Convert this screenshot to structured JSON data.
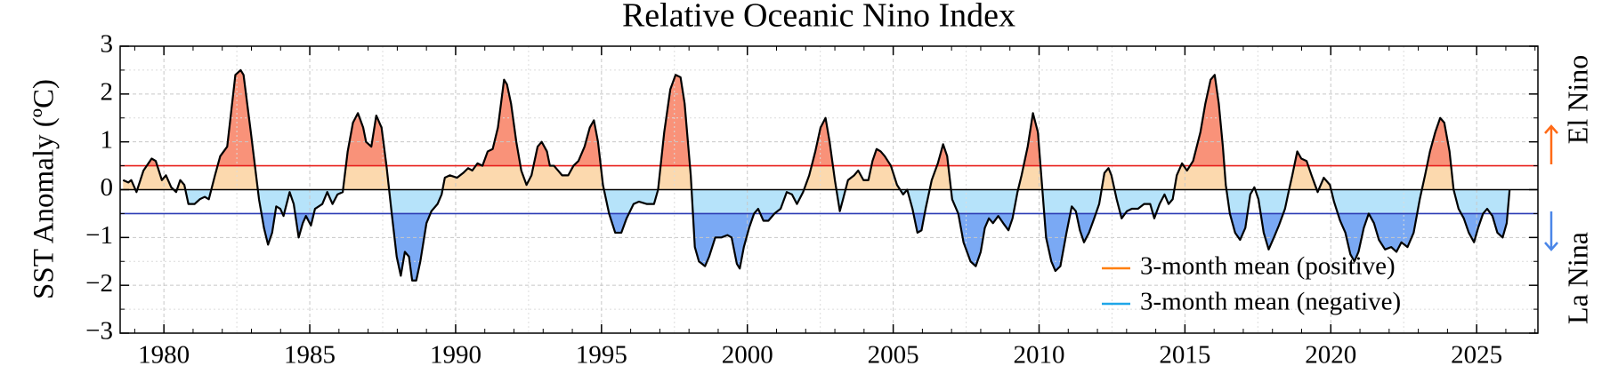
{
  "chart_data": {
    "type": "enso_area",
    "title": "Relative Oceanic Nino Index",
    "y_label": "SST Anomaly (ºC)",
    "xlim": [
      1978.5,
      2027.1
    ],
    "xticks": [
      1980,
      1985,
      1990,
      1995,
      2000,
      2005,
      2010,
      2015,
      2020,
      2025
    ],
    "ylim": [
      -3,
      3
    ],
    "yticks": [
      {
        "value": -3,
        "label": "−3"
      },
      {
        "value": -2,
        "label": "−2"
      },
      {
        "value": -1,
        "label": "−1"
      },
      0,
      1,
      2,
      3
    ],
    "grid": true,
    "line_color": "#000000",
    "x": [
      1978.6,
      1978.78,
      1978.88,
      1979.06,
      1979.3,
      1979.58,
      1979.72,
      1979.93,
      1980.07,
      1980.25,
      1980.42,
      1980.56,
      1980.7,
      1980.84,
      1981.05,
      1981.23,
      1981.4,
      1981.54,
      1981.75,
      1981.93,
      1982.17,
      1982.45,
      1982.63,
      1982.73,
      1982.98,
      1983.26,
      1983.43,
      1983.57,
      1983.71,
      1983.85,
      1983.99,
      1984.1,
      1984.31,
      1984.45,
      1984.62,
      1984.76,
      1984.87,
      1985.04,
      1985.18,
      1985.43,
      1985.6,
      1985.78,
      1985.95,
      1986.13,
      1986.3,
      1986.48,
      1986.65,
      1986.83,
      1986.93,
      1987.11,
      1987.28,
      1987.46,
      1987.63,
      1987.81,
      1987.98,
      1988.12,
      1988.26,
      1988.4,
      1988.51,
      1988.65,
      1988.79,
      1989.0,
      1989.17,
      1989.38,
      1989.52,
      1989.63,
      1989.8,
      1990.05,
      1990.26,
      1990.43,
      1990.57,
      1990.75,
      1990.92,
      1991.1,
      1991.27,
      1991.45,
      1991.66,
      1991.76,
      1991.9,
      1992.08,
      1992.25,
      1992.43,
      1992.6,
      1992.81,
      1992.95,
      1993.13,
      1993.23,
      1993.37,
      1993.51,
      1993.65,
      1993.86,
      1994.04,
      1994.21,
      1994.42,
      1994.6,
      1994.74,
      1994.88,
      1995.05,
      1995.26,
      1995.47,
      1995.68,
      1995.86,
      1996.1,
      1996.28,
      1996.56,
      1996.8,
      1996.94,
      1997.15,
      1997.36,
      1997.54,
      1997.71,
      1997.85,
      1998.06,
      1998.2,
      1998.34,
      1998.55,
      1998.69,
      1998.9,
      1999.11,
      1999.32,
      1999.46,
      1999.64,
      1999.74,
      1999.88,
      2000.06,
      2000.23,
      2000.37,
      2000.55,
      2000.72,
      2000.93,
      2001.14,
      2001.35,
      2001.53,
      2001.7,
      2001.91,
      2002.12,
      2002.33,
      2002.51,
      2002.68,
      2002.82,
      2003.0,
      2003.17,
      2003.28,
      2003.45,
      2003.66,
      2003.8,
      2003.98,
      2004.15,
      2004.29,
      2004.43,
      2004.57,
      2004.71,
      2004.92,
      2005.13,
      2005.34,
      2005.48,
      2005.66,
      2005.83,
      2005.97,
      2006.11,
      2006.32,
      2006.53,
      2006.71,
      2006.85,
      2007.02,
      2007.23,
      2007.41,
      2007.65,
      2007.83,
      2008.0,
      2008.14,
      2008.28,
      2008.42,
      2008.6,
      2008.77,
      2008.95,
      2009.09,
      2009.26,
      2009.4,
      2009.61,
      2009.79,
      2009.96,
      2010.1,
      2010.24,
      2010.42,
      2010.56,
      2010.73,
      2010.94,
      2011.12,
      2011.26,
      2011.4,
      2011.54,
      2011.71,
      2011.89,
      2012.06,
      2012.24,
      2012.38,
      2012.48,
      2012.66,
      2012.83,
      2013.01,
      2013.18,
      2013.39,
      2013.6,
      2013.81,
      2013.95,
      2014.13,
      2014.3,
      2014.44,
      2014.58,
      2014.72,
      2014.9,
      2015.07,
      2015.28,
      2015.53,
      2015.7,
      2015.88,
      2016.02,
      2016.16,
      2016.3,
      2016.4,
      2016.54,
      2016.72,
      2016.89,
      2017.07,
      2017.24,
      2017.38,
      2017.52,
      2017.7,
      2017.87,
      2018.05,
      2018.22,
      2018.43,
      2018.57,
      2018.68,
      2018.85,
      2018.99,
      2019.17,
      2019.34,
      2019.55,
      2019.76,
      2019.97,
      2020.11,
      2020.32,
      2020.5,
      2020.67,
      2020.81,
      2020.95,
      2021.13,
      2021.3,
      2021.48,
      2021.65,
      2021.86,
      2022.07,
      2022.25,
      2022.42,
      2022.63,
      2022.84,
      2023.05,
      2023.23,
      2023.4,
      2023.58,
      2023.75,
      2023.89,
      2024.07,
      2024.21,
      2024.38,
      2024.56,
      2024.73,
      2024.91,
      2025.05,
      2025.22,
      2025.36,
      2025.54,
      2025.71,
      2025.89,
      2026.03,
      2026.13
    ],
    "values": [
      0.2,
      0.15,
      0.2,
      -0.05,
      0.4,
      0.65,
      0.6,
      0.2,
      0.3,
      0.05,
      -0.05,
      0.2,
      0.1,
      -0.3,
      -0.3,
      -0.2,
      -0.15,
      -0.2,
      0.3,
      0.7,
      0.9,
      2.4,
      2.5,
      2.4,
      1.2,
      -0.2,
      -0.8,
      -1.15,
      -0.9,
      -0.35,
      -0.4,
      -0.55,
      -0.05,
      -0.3,
      -1.0,
      -0.7,
      -0.55,
      -0.75,
      -0.4,
      -0.3,
      -0.05,
      -0.3,
      -0.1,
      -0.05,
      0.8,
      1.4,
      1.6,
      1.3,
      1.0,
      0.9,
      1.55,
      1.3,
      0.5,
      -0.5,
      -1.4,
      -1.8,
      -1.3,
      -1.4,
      -1.9,
      -1.9,
      -1.5,
      -0.7,
      -0.45,
      -0.3,
      -0.1,
      0.25,
      0.3,
      0.25,
      0.35,
      0.45,
      0.4,
      0.55,
      0.5,
      0.8,
      0.85,
      1.3,
      2.3,
      2.2,
      1.8,
      1.0,
      0.4,
      0.1,
      0.3,
      0.9,
      1.0,
      0.8,
      0.5,
      0.5,
      0.4,
      0.3,
      0.3,
      0.5,
      0.6,
      0.9,
      1.3,
      1.45,
      1.0,
      0.1,
      -0.5,
      -0.9,
      -0.9,
      -0.6,
      -0.3,
      -0.25,
      -0.3,
      -0.3,
      0.0,
      1.2,
      2.1,
      2.4,
      2.35,
      1.8,
      0.3,
      -1.2,
      -1.5,
      -1.6,
      -1.4,
      -1.0,
      -1.0,
      -0.95,
      -1.0,
      -1.55,
      -1.65,
      -1.2,
      -0.8,
      -0.5,
      -0.4,
      -0.65,
      -0.65,
      -0.5,
      -0.4,
      -0.05,
      -0.1,
      -0.3,
      -0.05,
      0.3,
      0.8,
      1.3,
      1.5,
      1.0,
      0.2,
      -0.45,
      -0.2,
      0.2,
      0.3,
      0.4,
      0.2,
      0.2,
      0.6,
      0.85,
      0.8,
      0.7,
      0.5,
      0.1,
      -0.1,
      0.0,
      -0.4,
      -0.9,
      -0.85,
      -0.4,
      0.2,
      0.55,
      0.95,
      0.7,
      -0.2,
      -0.5,
      -1.1,
      -1.5,
      -1.6,
      -1.3,
      -0.8,
      -0.6,
      -0.7,
      -0.55,
      -0.7,
      -0.85,
      -0.6,
      -0.05,
      0.3,
      0.9,
      1.6,
      1.2,
      0.1,
      -1.0,
      -1.5,
      -1.7,
      -1.6,
      -0.9,
      -0.35,
      -0.45,
      -0.85,
      -1.1,
      -0.9,
      -0.6,
      -0.3,
      0.35,
      0.45,
      0.3,
      -0.2,
      -0.6,
      -0.45,
      -0.4,
      -0.4,
      -0.3,
      -0.3,
      -0.6,
      -0.3,
      -0.1,
      -0.3,
      -0.2,
      0.3,
      0.55,
      0.4,
      0.6,
      1.2,
      1.8,
      2.3,
      2.4,
      1.8,
      0.9,
      0.1,
      -0.5,
      -0.9,
      -1.05,
      -0.8,
      -0.1,
      0.05,
      -0.2,
      -0.9,
      -1.25,
      -1.0,
      -0.75,
      -0.4,
      0.0,
      0.3,
      0.8,
      0.65,
      0.6,
      0.3,
      -0.05,
      0.25,
      0.1,
      -0.25,
      -0.65,
      -0.9,
      -1.35,
      -1.5,
      -1.3,
      -0.8,
      -0.5,
      -0.7,
      -1.05,
      -1.25,
      -1.2,
      -1.3,
      -1.1,
      -1.2,
      -0.9,
      -0.2,
      0.3,
      0.8,
      1.2,
      1.5,
      1.4,
      0.8,
      0.0,
      -0.4,
      -0.6,
      -0.9,
      -1.1,
      -0.8,
      -0.5,
      -0.4,
      -0.55,
      -0.9,
      -1.0,
      -0.7,
      0.0
    ],
    "hlines": [
      {
        "value": 0.5,
        "color": "#e8201c"
      },
      {
        "value": 0,
        "color": "#000000"
      },
      {
        "value": -0.5,
        "color": "#2b3bb5"
      }
    ],
    "fill_colors": {
      "strong_positive": "#f99279",
      "positive": "#fcd9ae",
      "negative": "#b6e3fa",
      "strong_negative": "#7aa9f4"
    },
    "legend": [
      {
        "name": "3-month mean (positive)",
        "color": "#ff7f0e"
      },
      {
        "name": "3-month mean (negative)",
        "color": "#1fa6e8"
      }
    ],
    "annotations": [
      {
        "text": "El Nino",
        "color": "#ff6a16"
      },
      {
        "text": "La Nina",
        "color": "#4a86e8"
      }
    ]
  }
}
